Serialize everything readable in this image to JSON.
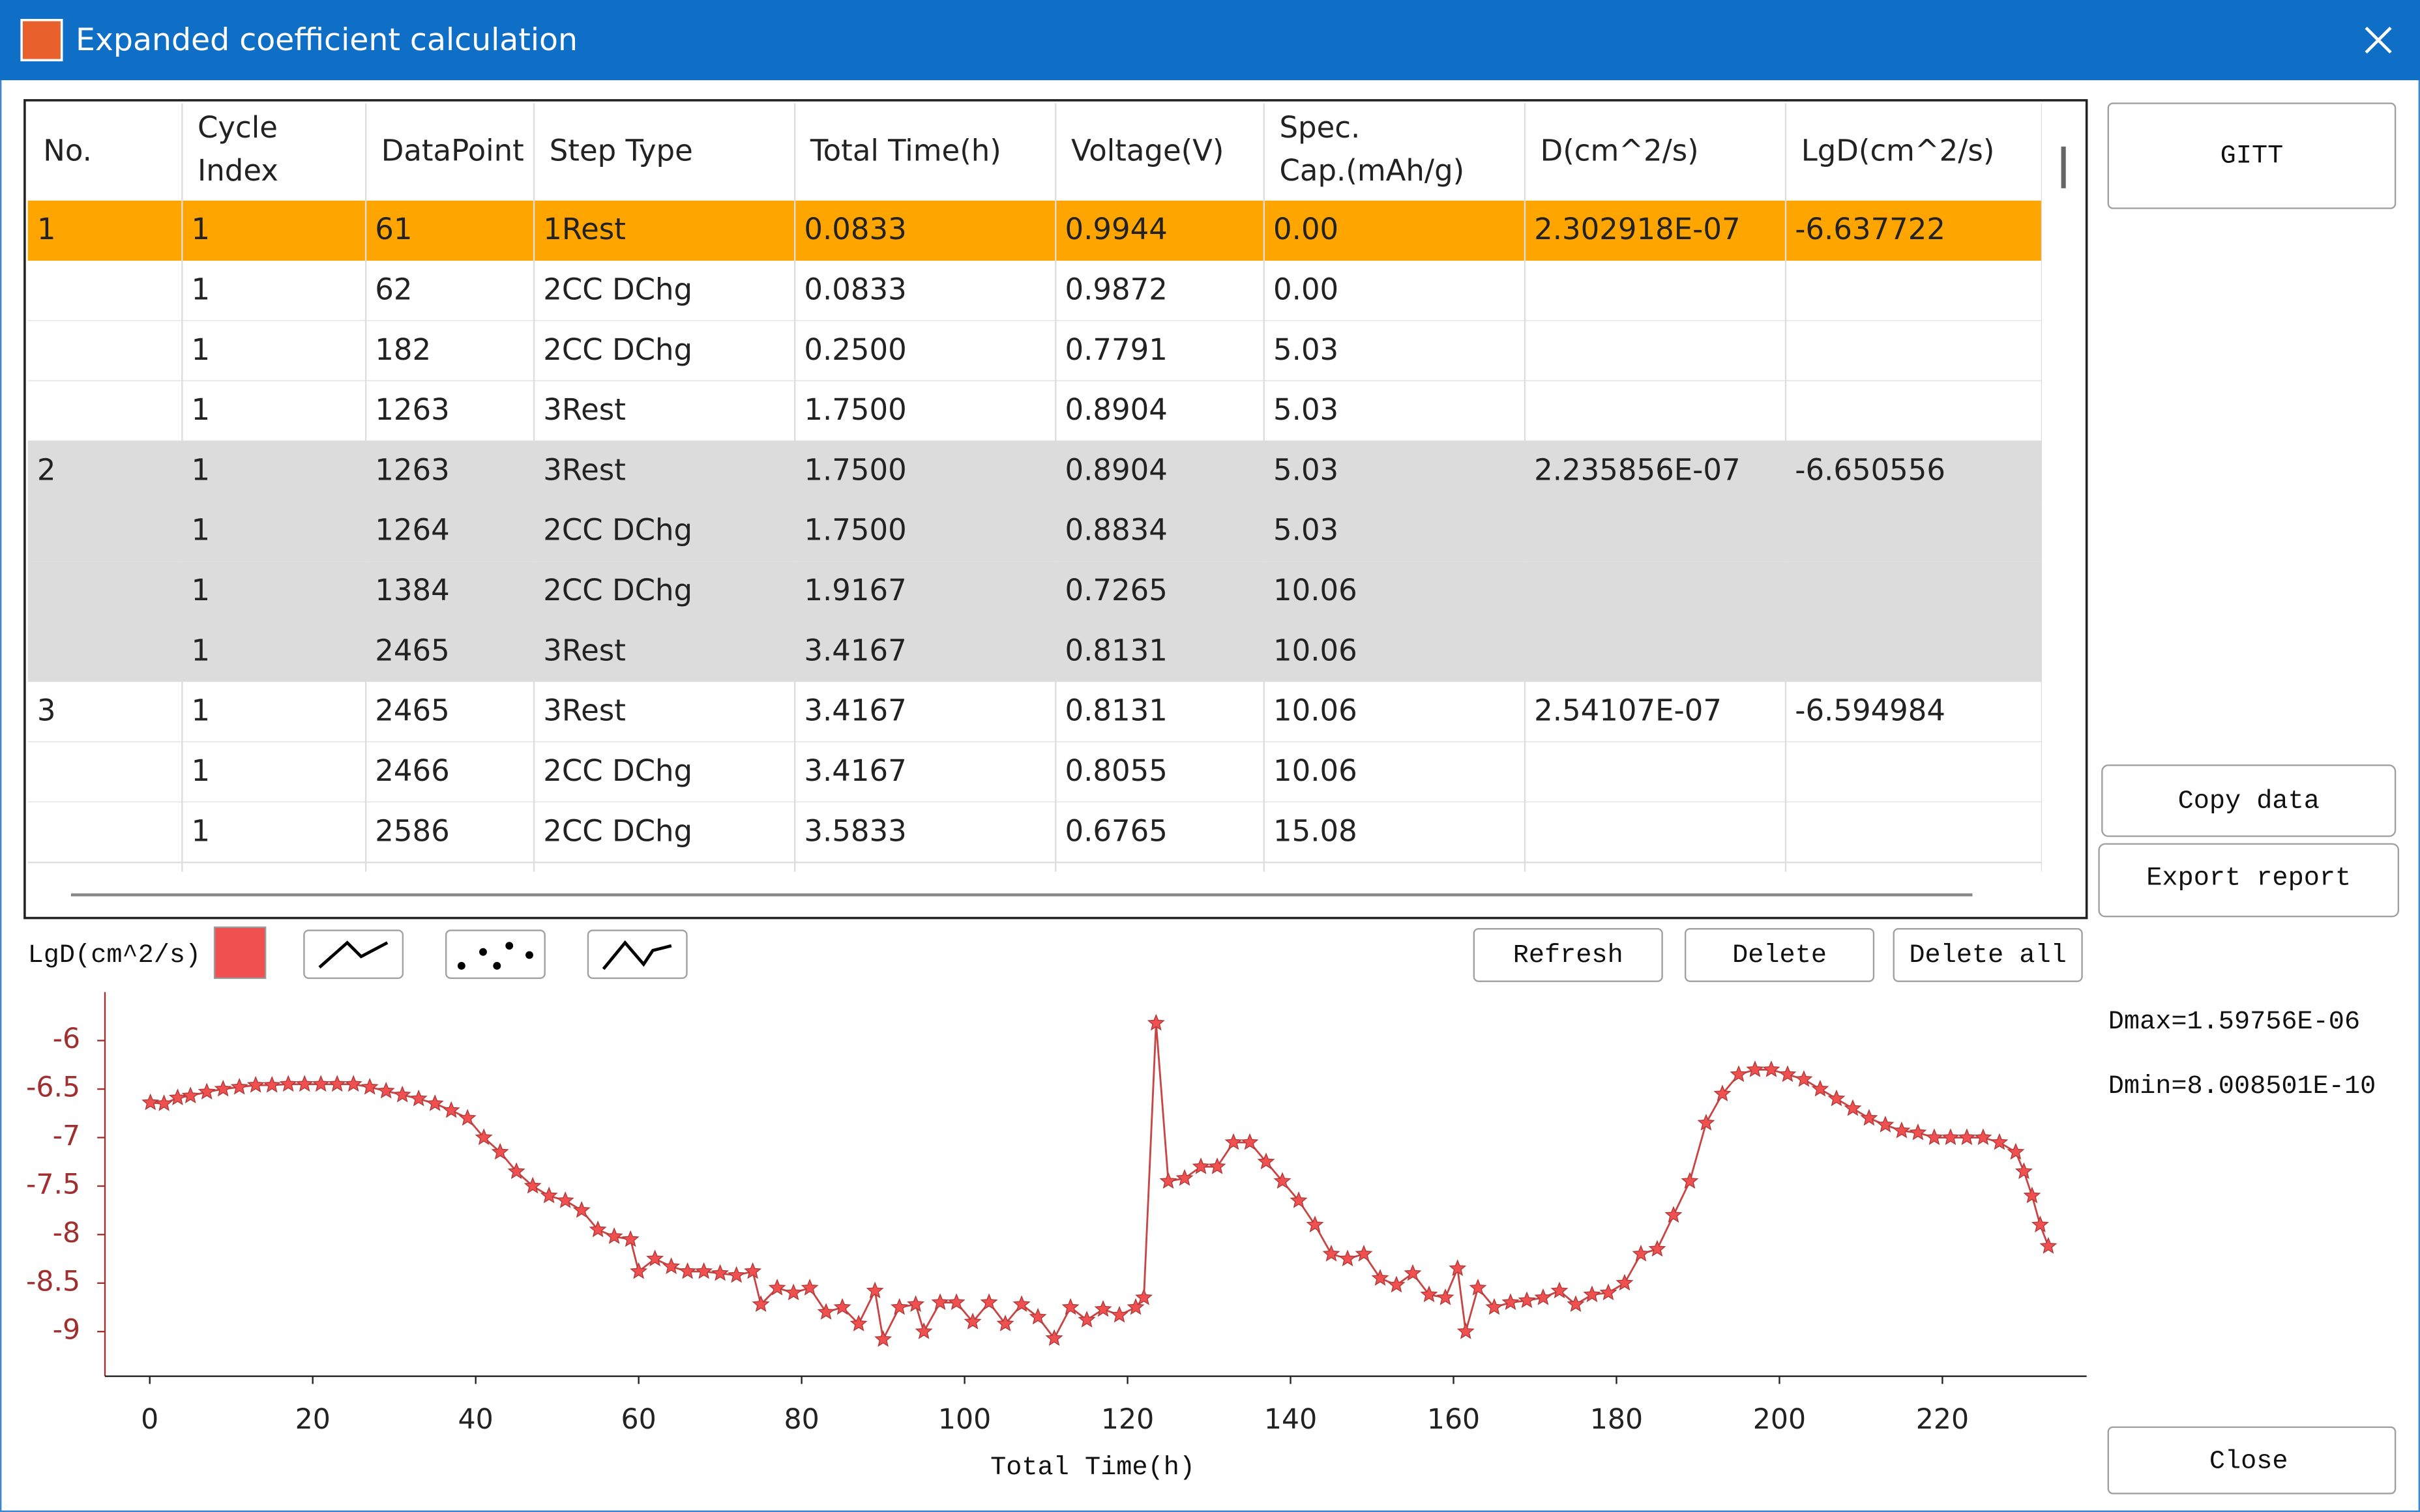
{
  "window": {
    "title": "Expanded coefficient calculation"
  },
  "table": {
    "headers": [
      [
        "No."
      ],
      [
        "Cycle",
        "Index"
      ],
      [
        "DataPoint"
      ],
      [
        "Step Type"
      ],
      [
        "Total Time(h)"
      ],
      [
        "Voltage(V)"
      ],
      [
        "Spec.",
        "Cap.(mAh/g)"
      ],
      [
        "D(cm^2/s)"
      ],
      [
        "LgD(cm^2/s)"
      ]
    ],
    "rows": [
      [
        "1",
        "1",
        "61",
        "1Rest",
        "0.0833",
        "0.9944",
        "0.00",
        "2.302918E-07",
        "-6.637722"
      ],
      [
        null,
        "1",
        "62",
        "2CC DChg",
        "0.0833",
        "0.9872",
        "0.00",
        null,
        null
      ],
      [
        null,
        "1",
        "182",
        "2CC DChg",
        "0.2500",
        "0.7791",
        "5.03",
        null,
        null
      ],
      [
        null,
        "1",
        "1263",
        "3Rest",
        "1.7500",
        "0.8904",
        "5.03",
        null,
        null
      ],
      [
        "2",
        "1",
        "1263",
        "3Rest",
        "1.7500",
        "0.8904",
        "5.03",
        "2.235856E-07",
        "-6.650556"
      ],
      [
        null,
        "1",
        "1264",
        "2CC DChg",
        "1.7500",
        "0.8834",
        "5.03",
        null,
        null
      ],
      [
        null,
        "1",
        "1384",
        "2CC DChg",
        "1.9167",
        "0.7265",
        "10.06",
        null,
        null
      ],
      [
        null,
        "1",
        "2465",
        "3Rest",
        "3.4167",
        "0.8131",
        "10.06",
        null,
        null
      ],
      [
        "3",
        "1",
        "2465",
        "3Rest",
        "3.4167",
        "0.8131",
        "10.06",
        "2.54107E-07",
        "-6.594984"
      ],
      [
        null,
        "1",
        "2466",
        "2CC DChg",
        "3.4167",
        "0.8055",
        "10.06",
        null,
        null
      ],
      [
        null,
        "1",
        "2586",
        "2CC DChg",
        "3.5833",
        "0.6765",
        "15.08",
        null,
        null
      ]
    ]
  },
  "side_buttons": {
    "gitt": "GITT",
    "copy": "Copy data",
    "export": "Export report",
    "close": "Close"
  },
  "toolbar_buttons": {
    "refresh": "Refresh",
    "delete": "Delete",
    "delete_all": "Delete all"
  },
  "chart_data": {
    "type": "line",
    "x_label": "Total Time(h)",
    "annotations": [
      "Dmax=1.59756E-06",
      "Dmin=8.008501E-10"
    ],
    "xlim": [
      -5.5,
      237.7
    ],
    "xticks": [
      0,
      20,
      40,
      60,
      80,
      100,
      120,
      140,
      160,
      180,
      200,
      220
    ],
    "ylim": [
      -9.46,
      -5.5
    ],
    "yticks": [
      -6,
      -6.5,
      -7,
      -7.5,
      -8,
      -8.5,
      -9
    ],
    "x": [
      0.08,
      1.75,
      3.42,
      5,
      7,
      9,
      11,
      13,
      15,
      17,
      19,
      21,
      23,
      25,
      27,
      29,
      31,
      33,
      35,
      37,
      39,
      41,
      43,
      45,
      47,
      49,
      51,
      53,
      55,
      57,
      59,
      60,
      62,
      64,
      66,
      68,
      70,
      72,
      74,
      75,
      77,
      79,
      81,
      83,
      85,
      87,
      89,
      90,
      92,
      94,
      95,
      97,
      99,
      101,
      103,
      105,
      107,
      109,
      111,
      113,
      115,
      117,
      119,
      121,
      122,
      123.5,
      125,
      127,
      129,
      131,
      133,
      135,
      137,
      139,
      141,
      143,
      145,
      147,
      149,
      151,
      153,
      155,
      157,
      159,
      160.5,
      161.5,
      163,
      165,
      167,
      169,
      171,
      173,
      175,
      177,
      179,
      181,
      183,
      185,
      187,
      189,
      191,
      193,
      195,
      197,
      199,
      201,
      203,
      205,
      207,
      209,
      211,
      213,
      215,
      217,
      219,
      221,
      223,
      225,
      227,
      229,
      230,
      231,
      232,
      233
    ],
    "series": [
      {
        "name": "LgD(cm^2/s)",
        "color": "#f05050",
        "values": [
          -6.64,
          -6.65,
          -6.59,
          -6.57,
          -6.53,
          -6.5,
          -6.48,
          -6.46,
          -6.46,
          -6.45,
          -6.45,
          -6.45,
          -6.45,
          -6.45,
          -6.48,
          -6.52,
          -6.56,
          -6.6,
          -6.65,
          -6.72,
          -6.8,
          -7.0,
          -7.15,
          -7.35,
          -7.5,
          -7.6,
          -7.65,
          -7.75,
          -7.95,
          -8.02,
          -8.05,
          -8.38,
          -8.25,
          -8.33,
          -8.38,
          -8.38,
          -8.4,
          -8.42,
          -8.38,
          -8.72,
          -8.55,
          -8.6,
          -8.55,
          -8.8,
          -8.75,
          -8.92,
          -8.58,
          -9.08,
          -8.75,
          -8.72,
          -9.0,
          -8.7,
          -8.7,
          -8.9,
          -8.7,
          -8.92,
          -8.72,
          -8.85,
          -9.07,
          -8.75,
          -8.88,
          -8.77,
          -8.83,
          -8.75,
          -8.65,
          -5.82,
          -7.45,
          -7.42,
          -7.3,
          -7.3,
          -7.05,
          -7.05,
          -7.25,
          -7.45,
          -7.65,
          -7.9,
          -8.2,
          -8.25,
          -8.2,
          -8.45,
          -8.52,
          -8.4,
          -8.62,
          -8.65,
          -8.35,
          -9.0,
          -8.55,
          -8.75,
          -8.7,
          -8.68,
          -8.65,
          -8.58,
          -8.72,
          -8.62,
          -8.6,
          -8.5,
          -8.2,
          -8.15,
          -7.8,
          -7.45,
          -6.85,
          -6.55,
          -6.35,
          -6.3,
          -6.3,
          -6.35,
          -6.4,
          -6.5,
          -6.6,
          -6.7,
          -6.8,
          -6.87,
          -6.93,
          -6.95,
          -7.0,
          -7.0,
          -7.0,
          -7.0,
          -7.05,
          -7.15,
          -7.35,
          -7.6,
          -7.9,
          -8.12
        ]
      }
    ]
  }
}
